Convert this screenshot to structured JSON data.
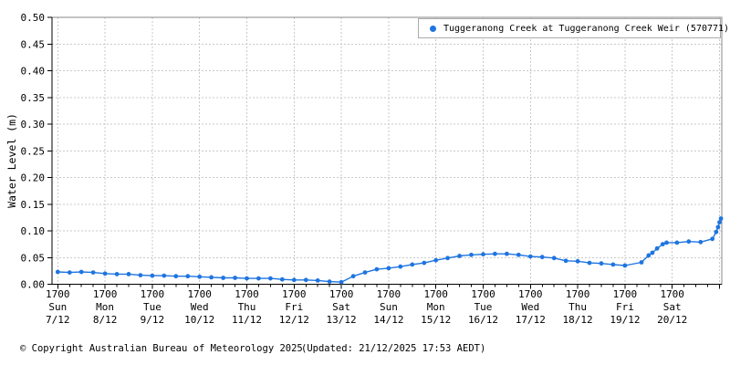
{
  "legend": {
    "marker_icon": "blue-dot",
    "label": "Tuggeranong Creek at Tuggeranong Creek Weir (570771)"
  },
  "footer": {
    "copyright": "© Copyright Australian Bureau of Meteorology 2025",
    "updated": "(Updated: 21/12/2025 17:53 AEDT)"
  },
  "colors": {
    "series": "#1f75e0",
    "grid": "#c9c9c9",
    "axis": "#000000",
    "border": "#8a8a8a",
    "text": "#000000"
  },
  "chart_data": {
    "type": "line",
    "title": "",
    "ylabel": "Water Level (m)",
    "ylim": [
      0,
      0.5
    ],
    "ytick_step": 0.05,
    "y_tick_labels": [
      "0.00",
      "0.05",
      "0.10",
      "0.15",
      "0.20",
      "0.25",
      "0.30",
      "0.35",
      "0.40",
      "0.45",
      "0.50"
    ],
    "grid": true,
    "legend_position": "top-right",
    "x_unit": "days since first tick (17:00 local), 4 minor ticks per day",
    "x_ticks": [
      {
        "d": 0,
        "time": "1700",
        "dow": "Sun",
        "date": "7/12"
      },
      {
        "d": 1,
        "time": "1700",
        "dow": "Mon",
        "date": "8/12"
      },
      {
        "d": 2,
        "time": "1700",
        "dow": "Tue",
        "date": "9/12"
      },
      {
        "d": 3,
        "time": "1700",
        "dow": "Wed",
        "date": "10/12"
      },
      {
        "d": 4,
        "time": "1700",
        "dow": "Thu",
        "date": "11/12"
      },
      {
        "d": 5,
        "time": "1700",
        "dow": "Fri",
        "date": "12/12"
      },
      {
        "d": 6,
        "time": "1700",
        "dow": "Sat",
        "date": "13/12"
      },
      {
        "d": 7,
        "time": "1700",
        "dow": "Sun",
        "date": "14/12"
      },
      {
        "d": 8,
        "time": "1700",
        "dow": "Mon",
        "date": "15/12"
      },
      {
        "d": 9,
        "time": "1700",
        "dow": "Tue",
        "date": "16/12"
      },
      {
        "d": 10,
        "time": "1700",
        "dow": "Wed",
        "date": "17/12"
      },
      {
        "d": 11,
        "time": "1700",
        "dow": "Thu",
        "date": "18/12"
      },
      {
        "d": 12,
        "time": "1700",
        "dow": "Fri",
        "date": "19/12"
      },
      {
        "d": 13,
        "time": "1700",
        "dow": "Sat",
        "date": "20/12"
      }
    ],
    "x_gridline_days": [
      0,
      1,
      2,
      3,
      4,
      5,
      6,
      7,
      8,
      9,
      10,
      11,
      12,
      13,
      14
    ],
    "series": [
      {
        "name": "Tuggeranong Creek at Tuggeranong Creek Weir (570771)",
        "color": "#1f75e0",
        "marker": "circle",
        "points": [
          [
            0,
            0.023
          ],
          [
            0.25,
            0.022
          ],
          [
            0.5,
            0.023
          ],
          [
            0.75,
            0.022
          ],
          [
            1,
            0.02
          ],
          [
            1.25,
            0.019
          ],
          [
            1.5,
            0.019
          ],
          [
            1.75,
            0.017
          ],
          [
            2,
            0.016
          ],
          [
            2.25,
            0.016
          ],
          [
            2.5,
            0.015
          ],
          [
            2.75,
            0.015
          ],
          [
            3,
            0.014
          ],
          [
            3.25,
            0.013
          ],
          [
            3.5,
            0.012
          ],
          [
            3.75,
            0.012
          ],
          [
            4,
            0.011
          ],
          [
            4.25,
            0.011
          ],
          [
            4.5,
            0.011
          ],
          [
            4.75,
            0.009
          ],
          [
            5,
            0.008
          ],
          [
            5.25,
            0.008
          ],
          [
            5.5,
            0.007
          ],
          [
            5.75,
            0.005
          ],
          [
            6,
            0.004
          ],
          [
            6.25,
            0.015
          ],
          [
            6.5,
            0.022
          ],
          [
            6.75,
            0.028
          ],
          [
            7,
            0.03
          ],
          [
            7.25,
            0.033
          ],
          [
            7.5,
            0.037
          ],
          [
            7.75,
            0.04
          ],
          [
            8,
            0.045
          ],
          [
            8.25,
            0.049
          ],
          [
            8.5,
            0.053
          ],
          [
            8.75,
            0.055
          ],
          [
            9,
            0.056
          ],
          [
            9.25,
            0.057
          ],
          [
            9.5,
            0.057
          ],
          [
            9.75,
            0.055
          ],
          [
            10,
            0.052
          ],
          [
            10.25,
            0.051
          ],
          [
            10.5,
            0.049
          ],
          [
            10.75,
            0.044
          ],
          [
            11,
            0.043
          ],
          [
            11.25,
            0.04
          ],
          [
            11.5,
            0.039
          ],
          [
            11.75,
            0.037
          ],
          [
            12,
            0.035
          ],
          [
            12.35,
            0.041
          ],
          [
            12.5,
            0.054
          ],
          [
            12.58,
            0.059
          ],
          [
            12.68,
            0.067
          ],
          [
            12.8,
            0.075
          ],
          [
            12.88,
            0.078
          ],
          [
            13.1,
            0.078
          ],
          [
            13.35,
            0.08
          ],
          [
            13.6,
            0.079
          ],
          [
            13.85,
            0.085
          ],
          [
            13.93,
            0.098
          ],
          [
            13.97,
            0.107
          ],
          [
            14,
            0.116
          ],
          [
            14.03,
            0.123
          ]
        ]
      }
    ]
  }
}
